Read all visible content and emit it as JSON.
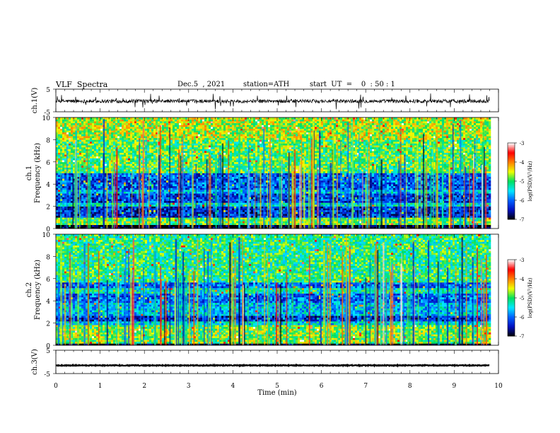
{
  "header": {
    "title": "VLF  Spectra",
    "date": "Dec.5  , 2021",
    "station": "station=ATH",
    "start_ut": "start  UT  =    0  : 50 : 1"
  },
  "chart_data": [
    {
      "type": "line",
      "panel": "ch1-waveform",
      "ylabel": "ch.1(V)",
      "ylim": [
        -5,
        5
      ],
      "yticks": [
        "5",
        "-5"
      ],
      "baseline": -0.3,
      "xlim": [
        0,
        10
      ]
    },
    {
      "type": "heatmap",
      "panel": "ch1-spectrogram",
      "ylabel_top": "ch.1",
      "ylabel": "Frequency  (kHz)",
      "ylim": [
        0,
        10
      ],
      "yticks": [
        "0",
        "2",
        "4",
        "6",
        "8",
        "10"
      ],
      "xlim": [
        0,
        9.8
      ],
      "colorbar": {
        "label": "log(PSD)(V²/Hz)",
        "range": [
          -7,
          -3
        ],
        "ticks": [
          "-3",
          "-4",
          "-5",
          "-6",
          "-7"
        ],
        "colors": [
          "#000000",
          "#0010c0",
          "#0060ff",
          "#00e8ff",
          "#00e060",
          "#f0ff00",
          "#ff8000",
          "#ff0000",
          "#ffffff"
        ]
      },
      "bands": [
        {
          "from": 0,
          "to": 0.35,
          "level": -7
        },
        {
          "from": 0.35,
          "to": 1.0,
          "level": -4.9
        },
        {
          "from": 1.0,
          "to": 2.0,
          "level": -6.3
        },
        {
          "from": 2.0,
          "to": 2.3,
          "level": -5.4
        },
        {
          "from": 2.3,
          "to": 3.1,
          "level": -6.2
        },
        {
          "from": 3.1,
          "to": 3.5,
          "level": -5.6
        },
        {
          "from": 3.5,
          "to": 5.0,
          "level": -6.1
        },
        {
          "from": 5.0,
          "to": 8.0,
          "level": -4.9
        },
        {
          "from": 8.0,
          "to": 10.0,
          "level": -4.6
        }
      ]
    },
    {
      "type": "heatmap",
      "panel": "ch2-spectrogram",
      "ylabel_top": "ch.2",
      "ylabel": "Frequency  (kHz)",
      "ylim": [
        0,
        10
      ],
      "yticks": [
        "0",
        "2",
        "4",
        "6",
        "8",
        "10"
      ],
      "xlim": [
        0,
        9.8
      ],
      "colorbar": {
        "label": "log(PSD)(V²/Hz)",
        "range": [
          -7,
          -3
        ],
        "ticks": [
          "-3",
          "-4",
          "-5",
          "-6",
          "-7"
        ],
        "colors": [
          "#000000",
          "#0010c0",
          "#0060ff",
          "#00e8ff",
          "#00e060",
          "#f0ff00",
          "#ff8000",
          "#ff0000",
          "#ffffff"
        ]
      },
      "bands": [
        {
          "from": 0,
          "to": 0.2,
          "level": -7
        },
        {
          "from": 0.2,
          "to": 1.9,
          "level": -4.8
        },
        {
          "from": 1.9,
          "to": 2.2,
          "level": -5.5
        },
        {
          "from": 2.2,
          "to": 2.6,
          "level": -6.3
        },
        {
          "from": 2.6,
          "to": 3.8,
          "level": -5.6
        },
        {
          "from": 3.8,
          "to": 4.6,
          "level": -6.0
        },
        {
          "from": 4.6,
          "to": 5.2,
          "level": -5.3
        },
        {
          "from": 5.2,
          "to": 5.6,
          "level": -6.0
        },
        {
          "from": 5.6,
          "to": 10.0,
          "level": -5.1
        }
      ]
    },
    {
      "type": "line",
      "panel": "ch3-waveform",
      "ylabel": "ch.3(V)",
      "ylim": [
        -5,
        5
      ],
      "yticks": [
        "5",
        "-5"
      ],
      "baseline": -1.5,
      "xlim": [
        0,
        10
      ]
    }
  ],
  "x_axis": {
    "label": "Time  (min)",
    "ticks": [
      "0",
      "1",
      "2",
      "3",
      "4",
      "5",
      "6",
      "7",
      "8",
      "9",
      "10"
    ]
  }
}
